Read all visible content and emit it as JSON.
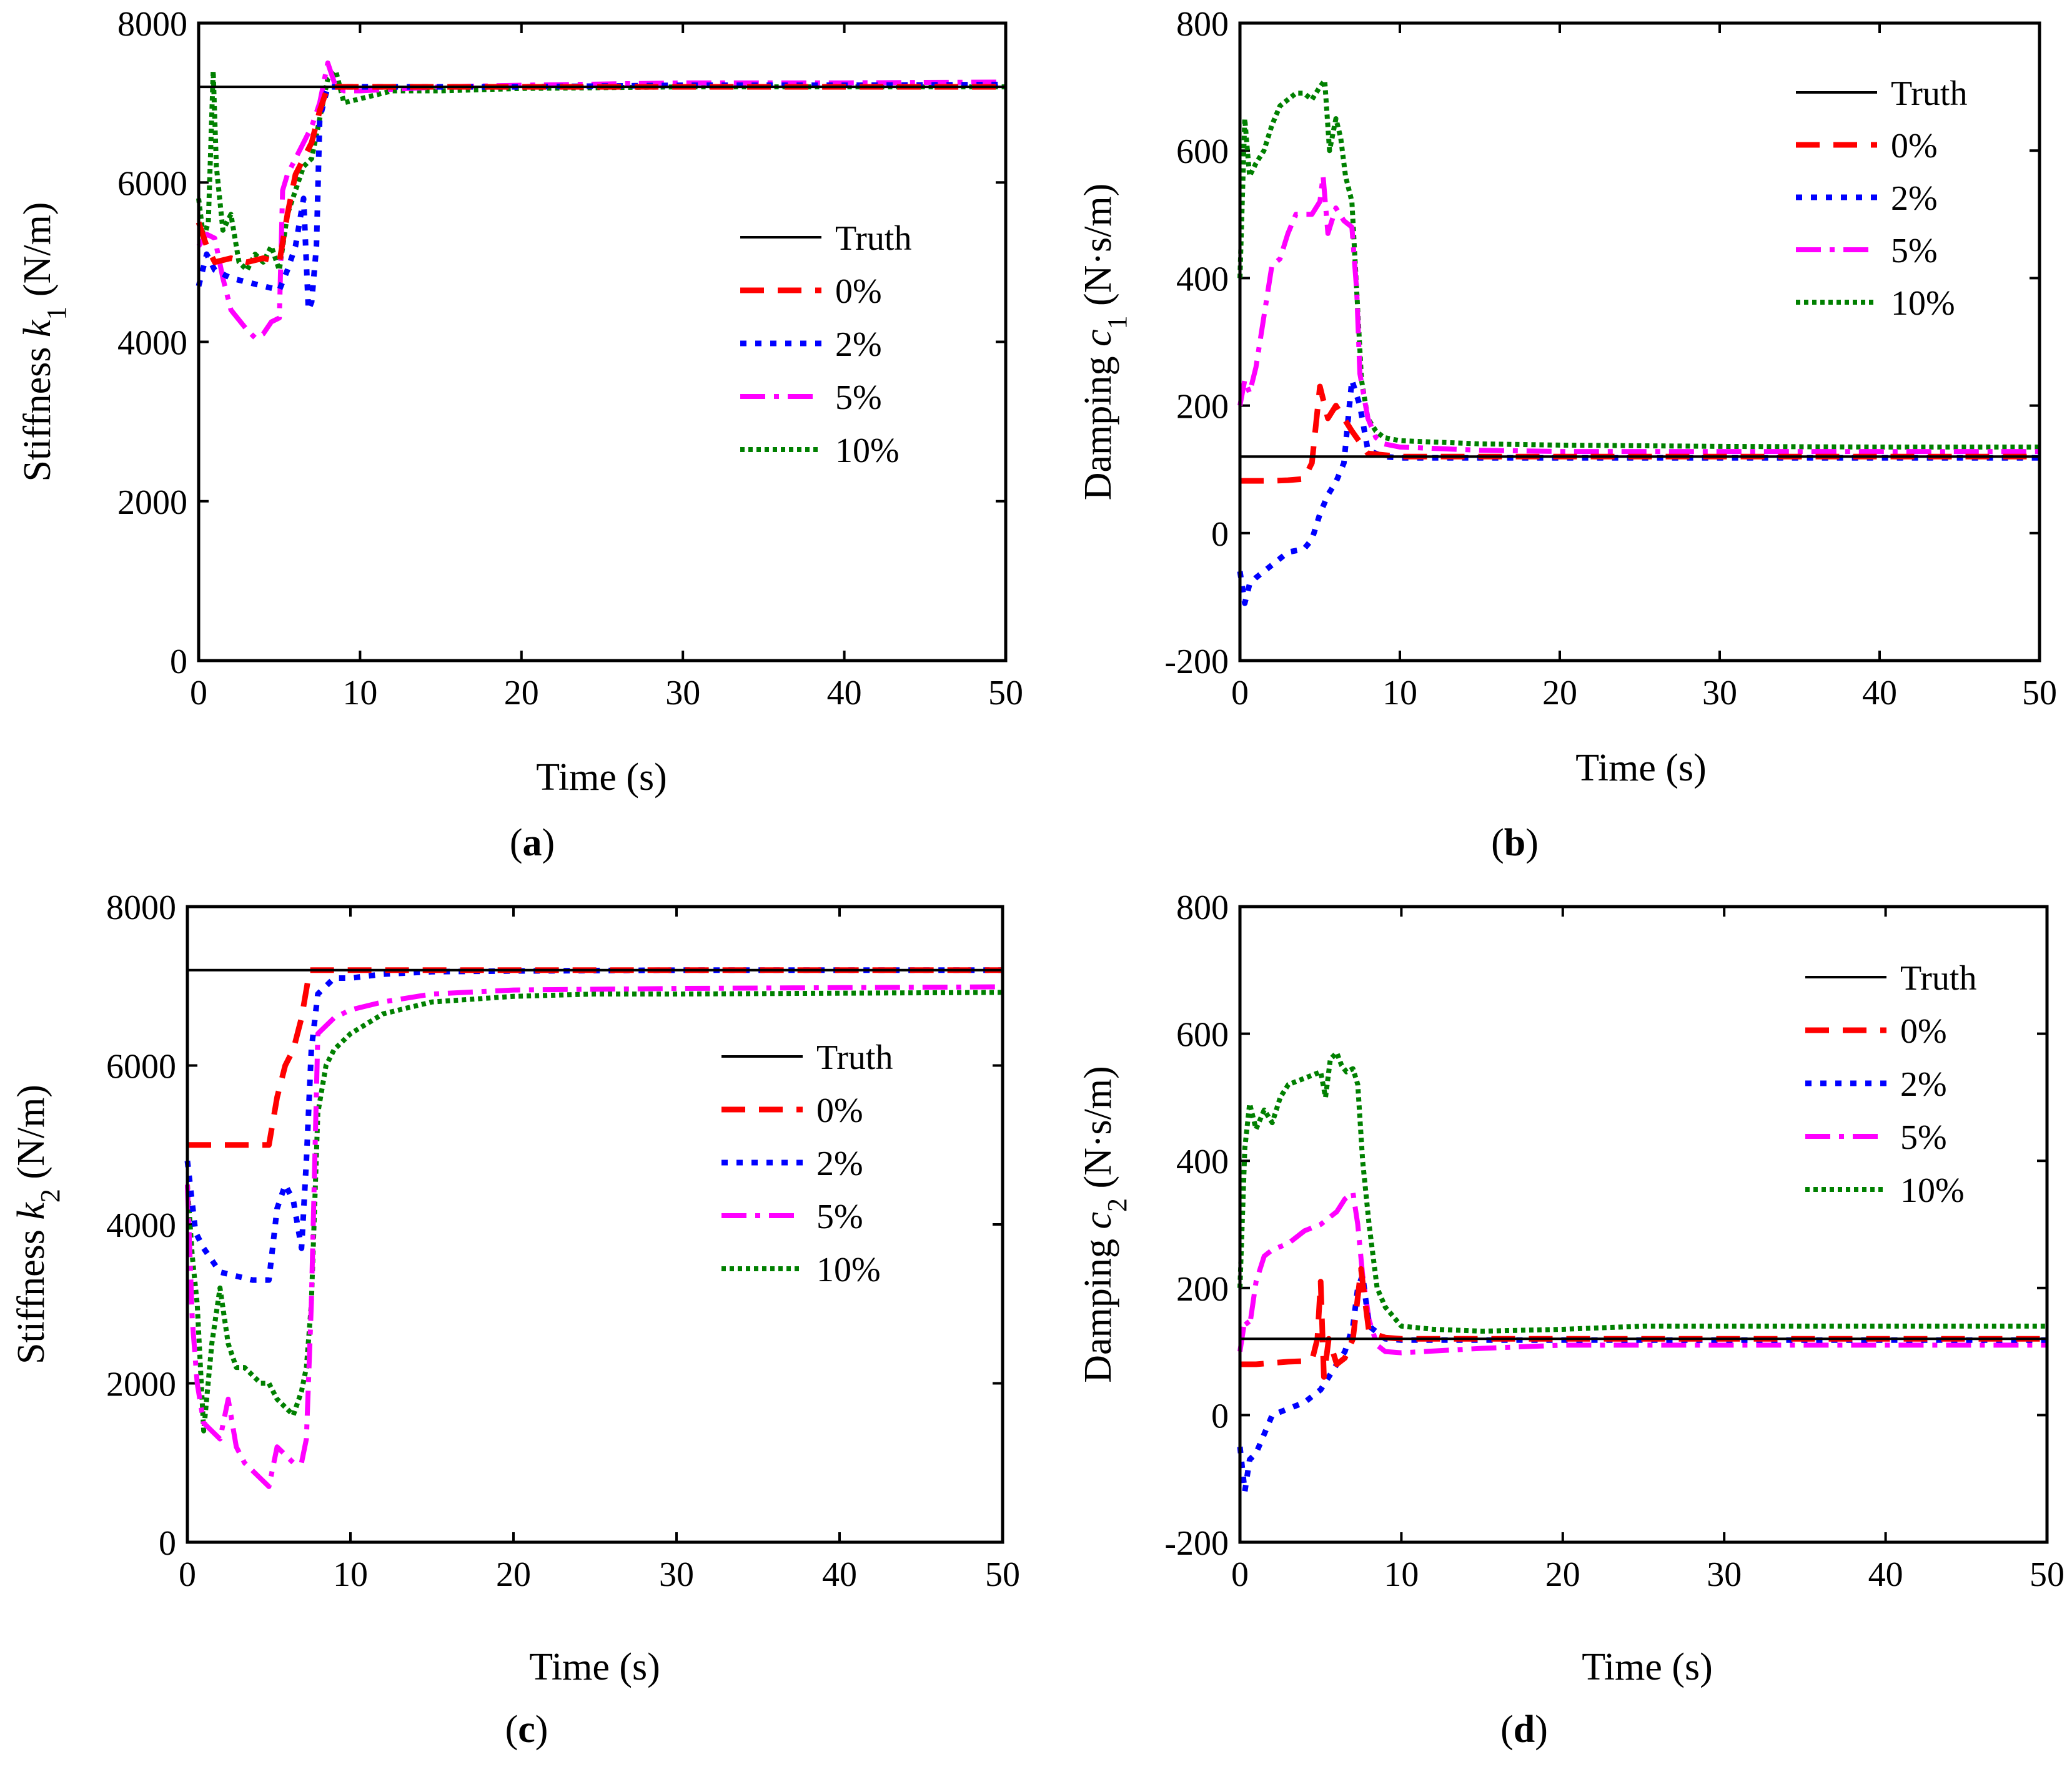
{
  "figure": {
    "panels": [
      "(a)",
      "(b)",
      "(c)",
      "(d)"
    ],
    "subtitles": [
      "a",
      "b",
      "c",
      "d"
    ],
    "y_prefixes": [
      "Stiffness ",
      "Damping ",
      "Stiffness ",
      "Damping "
    ],
    "y_symbols": [
      "k",
      "c",
      "k",
      "c"
    ],
    "y_subscripts": [
      "1",
      "1",
      "2",
      "2"
    ],
    "y_units": [
      " (N/m)",
      " (N·s/m)",
      " (N/m)",
      " (N·s/m)"
    ]
  },
  "colors": {
    "Truth": "#000000",
    "0%": "#ff0000",
    "2%": "#0000ff",
    "5%": "#ff00ff",
    "10%": "#008000"
  },
  "chart_data": [
    {
      "panel": "a",
      "type": "line",
      "title": "(a)",
      "xlabel": "Time (s)",
      "ylabel": "Stiffness k1 (N/m)",
      "xlim": [
        0,
        50
      ],
      "ylim": [
        0,
        8000
      ],
      "xticks": [
        0,
        10,
        20,
        30,
        40,
        50
      ],
      "yticks": [
        0,
        2000,
        4000,
        6000,
        8000
      ],
      "legend": [
        "Truth",
        "0%",
        "2%",
        "5%",
        "10%"
      ],
      "legend_position": "middle-right",
      "series": [
        {
          "name": "Truth",
          "x": [
            0,
            50
          ],
          "y": [
            7200,
            7200
          ]
        },
        {
          "name": "0%",
          "x": [
            0,
            0.5,
            1,
            2,
            3,
            4,
            5,
            5.5,
            6,
            6.5,
            7,
            7.5,
            8,
            9,
            10,
            15,
            20,
            30,
            40,
            50
          ],
          "y": [
            5500,
            5200,
            5000,
            5050,
            5000,
            5050,
            5000,
            5600,
            6100,
            6300,
            6500,
            6900,
            7200,
            7200,
            7200,
            7200,
            7200,
            7200,
            7200,
            7200
          ]
        },
        {
          "name": "2%",
          "x": [
            0,
            0.5,
            1,
            2,
            3,
            4,
            5,
            5.5,
            6,
            6.5,
            6.8,
            7,
            7.3,
            7.5,
            8,
            9,
            10,
            15,
            20,
            30,
            40,
            50
          ],
          "y": [
            4700,
            5100,
            4900,
            4800,
            4750,
            4700,
            4650,
            4900,
            5200,
            5800,
            4400,
            4500,
            5200,
            6800,
            7200,
            7200,
            7200,
            7200,
            7200,
            7220,
            7220,
            7230
          ]
        },
        {
          "name": "5%",
          "x": [
            0,
            0.5,
            1,
            1.5,
            2,
            3,
            3.5,
            4,
            4.5,
            5,
            5.2,
            5.5,
            6,
            6.5,
            7,
            7.5,
            8,
            8.5,
            9,
            10,
            15,
            20,
            30,
            40,
            50
          ],
          "y": [
            5200,
            5350,
            5300,
            4800,
            4400,
            4150,
            4050,
            4100,
            4250,
            4300,
            5900,
            6100,
            6300,
            6500,
            6700,
            7000,
            7500,
            7200,
            7150,
            7150,
            7200,
            7220,
            7250,
            7250,
            7260
          ]
        },
        {
          "name": "10%",
          "x": [
            0,
            0.3,
            0.6,
            0.9,
            1.1,
            1.5,
            2,
            2.5,
            3,
            3.5,
            4,
            4.5,
            5,
            5.5,
            6,
            6.5,
            7,
            7.5,
            8,
            8.5,
            9,
            10,
            12,
            15,
            20,
            30,
            40,
            50
          ],
          "y": [
            5800,
            5300,
            5500,
            7400,
            6200,
            5400,
            5600,
            5000,
            4900,
            5100,
            5000,
            5200,
            4900,
            5600,
            5900,
            6200,
            6300,
            6800,
            7300,
            7400,
            7000,
            7050,
            7150,
            7150,
            7180,
            7200,
            7200,
            7200
          ]
        }
      ]
    },
    {
      "panel": "b",
      "type": "line",
      "title": "(b)",
      "xlabel": "Time (s)",
      "ylabel": "Damping c1 (N·s/m)",
      "xlim": [
        0,
        50
      ],
      "ylim": [
        -200,
        800
      ],
      "xticks": [
        0,
        10,
        20,
        30,
        40,
        50
      ],
      "yticks": [
        -200,
        0,
        200,
        400,
        600,
        800
      ],
      "legend": [
        "Truth",
        "0%",
        "2%",
        "5%",
        "10%"
      ],
      "legend_position": "top-right",
      "series": [
        {
          "name": "Truth",
          "x": [
            0,
            50
          ],
          "y": [
            120,
            120
          ]
        },
        {
          "name": "0%",
          "x": [
            0,
            1,
            2,
            3,
            4,
            4.5,
            5,
            5.5,
            6,
            7,
            8,
            10,
            20,
            30,
            40,
            50
          ],
          "y": [
            82,
            82,
            82,
            83,
            85,
            110,
            230,
            180,
            200,
            160,
            125,
            120,
            120,
            120,
            120,
            120
          ]
        },
        {
          "name": "2%",
          "x": [
            0,
            0.3,
            0.6,
            1,
            2,
            3,
            4,
            4.5,
            5,
            5.5,
            6,
            6.5,
            7,
            7.5,
            8,
            9,
            10,
            20,
            30,
            40,
            50
          ],
          "y": [
            -60,
            -110,
            -80,
            -70,
            -50,
            -30,
            -25,
            -10,
            30,
            60,
            80,
            110,
            240,
            200,
            130,
            120,
            118,
            118,
            118,
            118,
            118
          ]
        },
        {
          "name": "5%",
          "x": [
            0,
            0.3,
            0.6,
            1,
            1.5,
            2,
            2.5,
            3,
            3.5,
            4,
            4.5,
            5,
            5.2,
            5.5,
            6,
            6.5,
            7,
            7.3,
            7.5,
            8,
            8.5,
            9,
            10,
            15,
            20,
            30,
            40,
            50
          ],
          "y": [
            200,
            240,
            220,
            260,
            340,
            420,
            430,
            470,
            500,
            500,
            500,
            520,
            560,
            470,
            510,
            490,
            480,
            380,
            250,
            180,
            150,
            140,
            135,
            130,
            128,
            128,
            128,
            128
          ]
        },
        {
          "name": "10%",
          "x": [
            0,
            0.3,
            0.6,
            1,
            1.5,
            2,
            2.5,
            3,
            3.5,
            4,
            4.5,
            5,
            5.3,
            5.6,
            6,
            6.3,
            6.6,
            7,
            7.3,
            7.6,
            8,
            8.5,
            9,
            10,
            15,
            20,
            30,
            40,
            50
          ],
          "y": [
            400,
            650,
            560,
            580,
            600,
            640,
            670,
            680,
            690,
            690,
            680,
            700,
            710,
            600,
            650,
            620,
            560,
            520,
            380,
            240,
            180,
            160,
            150,
            145,
            140,
            138,
            136,
            135,
            135
          ]
        }
      ]
    },
    {
      "panel": "c",
      "type": "line",
      "title": "(c)",
      "xlabel": "Time (s)",
      "ylabel": "Stiffness k2 (N/m)",
      "xlim": [
        0,
        50
      ],
      "ylim": [
        0,
        8000
      ],
      "xticks": [
        0,
        10,
        20,
        30,
        40,
        50
      ],
      "yticks": [
        0,
        2000,
        4000,
        6000,
        8000
      ],
      "legend": [
        "Truth",
        "0%",
        "2%",
        "5%",
        "10%"
      ],
      "legend_position": "middle-right",
      "series": [
        {
          "name": "Truth",
          "x": [
            0,
            50
          ],
          "y": [
            7200,
            7200
          ]
        },
        {
          "name": "0%",
          "x": [
            0,
            1,
            2,
            3,
            4,
            5,
            5.5,
            6,
            6.5,
            7,
            7.5,
            8,
            9,
            10,
            20,
            30,
            40,
            50
          ],
          "y": [
            5000,
            5000,
            5000,
            5000,
            5000,
            5000,
            5600,
            6000,
            6200,
            6600,
            7200,
            7200,
            7200,
            7200,
            7200,
            7200,
            7200,
            7200
          ]
        },
        {
          "name": "2%",
          "x": [
            0,
            0.5,
            1,
            2,
            3,
            4,
            5,
            5.5,
            6,
            6.5,
            7,
            7.3,
            7.6,
            8,
            9,
            10,
            12,
            15,
            20,
            30,
            40,
            50
          ],
          "y": [
            4800,
            3900,
            3700,
            3400,
            3350,
            3300,
            3300,
            4200,
            4500,
            4300,
            3700,
            4800,
            6200,
            6900,
            7100,
            7100,
            7150,
            7180,
            7190,
            7200,
            7200,
            7200
          ]
        },
        {
          "name": "5%",
          "x": [
            0,
            0.3,
            0.6,
            1,
            1.5,
            2,
            2.5,
            3,
            3.5,
            4,
            4.5,
            5,
            5.5,
            6,
            6.5,
            7,
            7.3,
            7.6,
            8,
            9,
            10,
            12,
            15,
            20,
            30,
            40,
            50
          ],
          "y": [
            4500,
            2800,
            2000,
            1500,
            1400,
            1300,
            1800,
            1200,
            1000,
            900,
            800,
            700,
            1200,
            1100,
            1000,
            1000,
            1300,
            3000,
            6400,
            6600,
            6700,
            6800,
            6900,
            6950,
            6970,
            6980,
            6990
          ]
        },
        {
          "name": "10%",
          "x": [
            0,
            0.3,
            0.6,
            1,
            1.5,
            2,
            2.5,
            3,
            3.5,
            4,
            4.5,
            5,
            5.5,
            6,
            6.5,
            7,
            7.3,
            7.6,
            8,
            8.5,
            9,
            10,
            12,
            15,
            20,
            25,
            30,
            40,
            50
          ],
          "y": [
            4500,
            3600,
            3000,
            1400,
            2500,
            3200,
            2500,
            2200,
            2200,
            2100,
            2000,
            2000,
            1800,
            1700,
            1600,
            1900,
            2200,
            3000,
            5400,
            6000,
            6200,
            6400,
            6650,
            6800,
            6870,
            6900,
            6900,
            6910,
            6920
          ]
        }
      ]
    },
    {
      "panel": "d",
      "type": "line",
      "title": "(d)",
      "xlabel": "Time (s)",
      "ylabel": "Damping c2 (N·s/m)",
      "xlim": [
        0,
        50
      ],
      "ylim": [
        -200,
        800
      ],
      "xticks": [
        0,
        10,
        20,
        30,
        40,
        50
      ],
      "yticks": [
        -200,
        0,
        200,
        400,
        600,
        800
      ],
      "legend": [
        "Truth",
        "0%",
        "2%",
        "5%",
        "10%"
      ],
      "legend_position": "top-right",
      "series": [
        {
          "name": "Truth",
          "x": [
            0,
            50
          ],
          "y": [
            120,
            120
          ]
        },
        {
          "name": "0%",
          "x": [
            0,
            1,
            2,
            3,
            4,
            4.5,
            4.8,
            5,
            5.2,
            5.5,
            6,
            6.5,
            7,
            7.5,
            8,
            9,
            10,
            20,
            30,
            40,
            50
          ],
          "y": [
            80,
            80,
            82,
            84,
            85,
            90,
            120,
            210,
            60,
            120,
            80,
            90,
            120,
            230,
            130,
            122,
            120,
            120,
            120,
            120,
            120
          ]
        },
        {
          "name": "2%",
          "x": [
            0,
            0.3,
            0.6,
            1,
            1.5,
            2,
            3,
            4,
            5,
            6,
            6.5,
            7,
            7.3,
            7.6,
            8,
            9,
            10,
            20,
            30,
            40,
            50
          ],
          "y": [
            -50,
            -120,
            -70,
            -60,
            -30,
            0,
            10,
            20,
            40,
            80,
            100,
            140,
            200,
            220,
            140,
            120,
            118,
            118,
            118,
            118,
            118
          ]
        },
        {
          "name": "5%",
          "x": [
            0,
            0.3,
            0.6,
            1,
            1.5,
            2,
            3,
            4,
            5,
            6,
            6.5,
            7,
            7.3,
            7.6,
            8,
            8.5,
            9,
            10,
            15,
            20,
            30,
            40,
            50
          ],
          "y": [
            100,
            150,
            140,
            210,
            250,
            260,
            270,
            290,
            300,
            320,
            340,
            350,
            300,
            220,
            150,
            110,
            100,
            98,
            105,
            110,
            110,
            110,
            110
          ]
        },
        {
          "name": "10%",
          "x": [
            0,
            0.3,
            0.6,
            1,
            1.5,
            2,
            2.5,
            3,
            4,
            5,
            5.3,
            5.6,
            6,
            6.3,
            6.6,
            7,
            7.3,
            7.6,
            8,
            8.5,
            9,
            10,
            12,
            15,
            20,
            25,
            30,
            40,
            50
          ],
          "y": [
            200,
            420,
            490,
            450,
            480,
            460,
            500,
            520,
            530,
            540,
            500,
            560,
            570,
            550,
            540,
            545,
            520,
            400,
            300,
            200,
            170,
            140,
            135,
            132,
            135,
            140,
            140,
            140,
            140
          ]
        }
      ]
    }
  ]
}
